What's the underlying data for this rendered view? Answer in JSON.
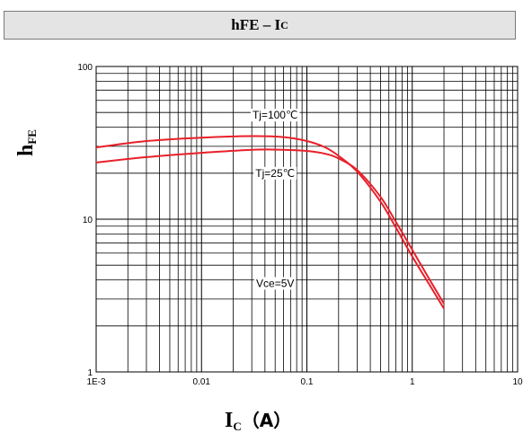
{
  "header": {
    "title_main": "hFE – I",
    "title_sub": "C"
  },
  "chart_data": {
    "type": "line",
    "title": "hFE – IC",
    "xlabel": "IC（A）",
    "ylabel": "hFE",
    "x_scale": "log",
    "y_scale": "log",
    "xlim": [
      0.001,
      10
    ],
    "ylim": [
      1,
      100
    ],
    "x_ticks": [
      0.001,
      0.01,
      0.1,
      1,
      10
    ],
    "x_tick_labels": [
      "1E-3",
      "0.01",
      "0.1",
      "1",
      "10"
    ],
    "y_ticks": [
      1,
      10,
      100
    ],
    "y_tick_labels": [
      "1",
      "10",
      "100"
    ],
    "grid": true,
    "series": [
      {
        "name": "Tj=100℃",
        "color": "#e8202a",
        "x": [
          0.001,
          0.003,
          0.01,
          0.03,
          0.06,
          0.1,
          0.15,
          0.2,
          0.3,
          0.5,
          0.7,
          1.0,
          1.5,
          2.0
        ],
        "y": [
          29.5,
          32.5,
          34.2,
          35.0,
          34.5,
          32.5,
          29.5,
          26.0,
          20.5,
          13.0,
          8.8,
          5.7,
          3.6,
          2.6
        ]
      },
      {
        "name": "Tj=25℃",
        "color": "#e8202a",
        "x": [
          0.001,
          0.003,
          0.01,
          0.03,
          0.06,
          0.1,
          0.15,
          0.2,
          0.3,
          0.5,
          0.7,
          1.0,
          1.5,
          2.0
        ],
        "y": [
          23.5,
          25.5,
          27.2,
          28.5,
          28.5,
          28.0,
          26.8,
          25.0,
          21.0,
          14.0,
          9.6,
          6.3,
          3.9,
          2.8
        ]
      }
    ],
    "annotations": [
      {
        "text": "Tj=100℃",
        "x": 0.05,
        "y": 48
      },
      {
        "text": "Tj=25℃",
        "x": 0.05,
        "y": 20
      },
      {
        "text": "Vce=5V",
        "x": 0.05,
        "y": 3.8
      }
    ]
  },
  "axis_labels": {
    "y_main": "h",
    "y_sub": "FE",
    "x_main": "I",
    "x_sub": "C",
    "x_unit": "（A）"
  }
}
